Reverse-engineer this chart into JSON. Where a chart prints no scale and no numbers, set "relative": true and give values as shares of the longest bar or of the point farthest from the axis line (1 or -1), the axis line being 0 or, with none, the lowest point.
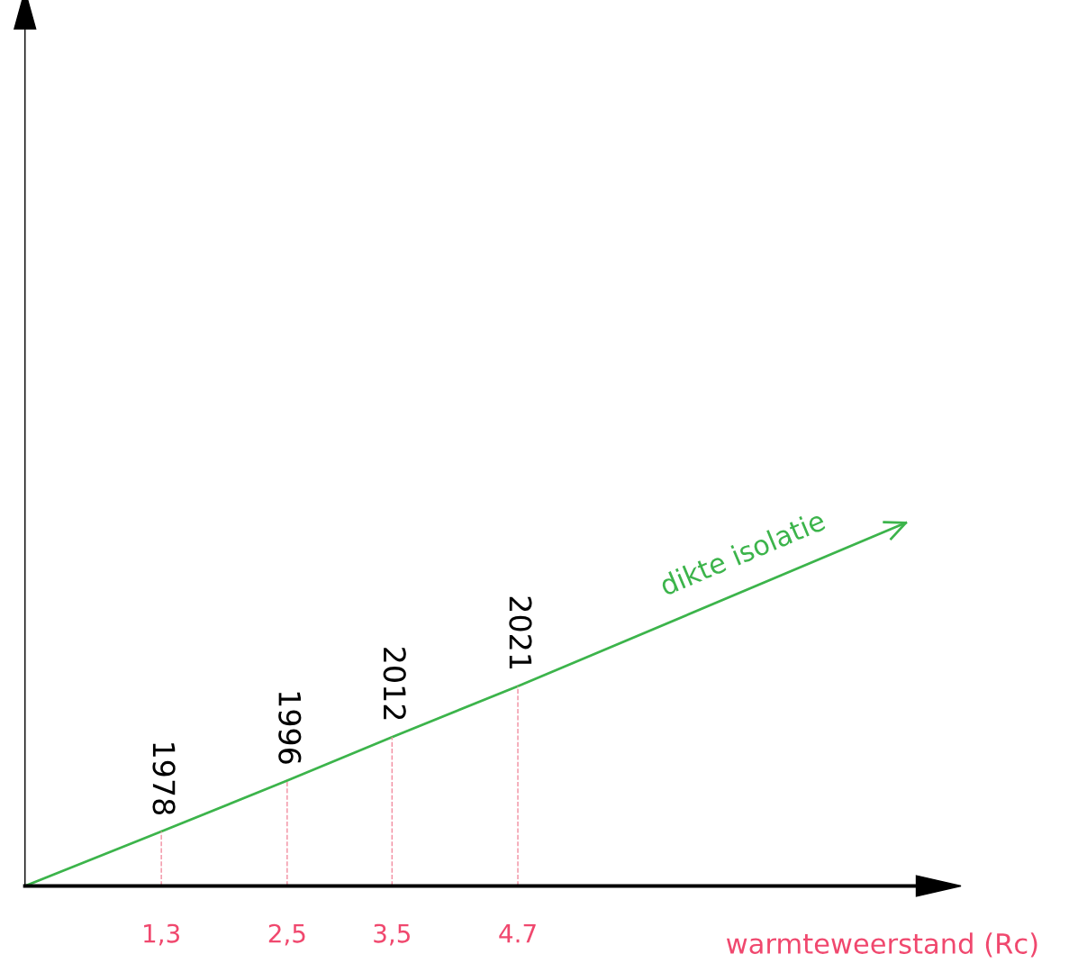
{
  "chart_data": {
    "type": "line",
    "relative": true,
    "xlabel": "warmteweerstand (Rc)",
    "xlim": [
      0,
      8.5
    ],
    "xticks": [
      {
        "value": 1.3,
        "label": "1,3"
      },
      {
        "value": 2.5,
        "label": "2,5"
      },
      {
        "value": 3.5,
        "label": "3,5"
      },
      {
        "value": 4.7,
        "label": "4.7"
      }
    ],
    "tick_labels": "x",
    "grid": false,
    "legend": false,
    "series": [
      {
        "name": "dikte isolatie",
        "color": "#3cb44b",
        "x": [
          0,
          1.3,
          2.5,
          3.5,
          4.7,
          8.4
        ],
        "values": [
          0,
          0.15,
          0.29,
          0.41,
          0.55,
          1
        ]
      }
    ],
    "annotations": [
      {
        "text": "1978",
        "x": 1.3,
        "y": 0.15
      },
      {
        "text": "1996",
        "x": 2.5,
        "y": 0.29
      },
      {
        "text": "2012",
        "x": 3.5,
        "y": 0.41
      },
      {
        "text": "2021",
        "x": 4.7,
        "y": 0.55
      }
    ],
    "ref_lines": [
      {
        "axis": "x",
        "value": 1.3,
        "color": "#f28da0",
        "line_style": "dashed"
      },
      {
        "axis": "x",
        "value": 2.5,
        "color": "#f28da0",
        "line_style": "dashed"
      },
      {
        "axis": "x",
        "value": 3.5,
        "color": "#f28da0",
        "line_style": "dashed"
      },
      {
        "axis": "x",
        "value": 4.7,
        "color": "#f28da0",
        "line_style": "dashed"
      }
    ]
  }
}
